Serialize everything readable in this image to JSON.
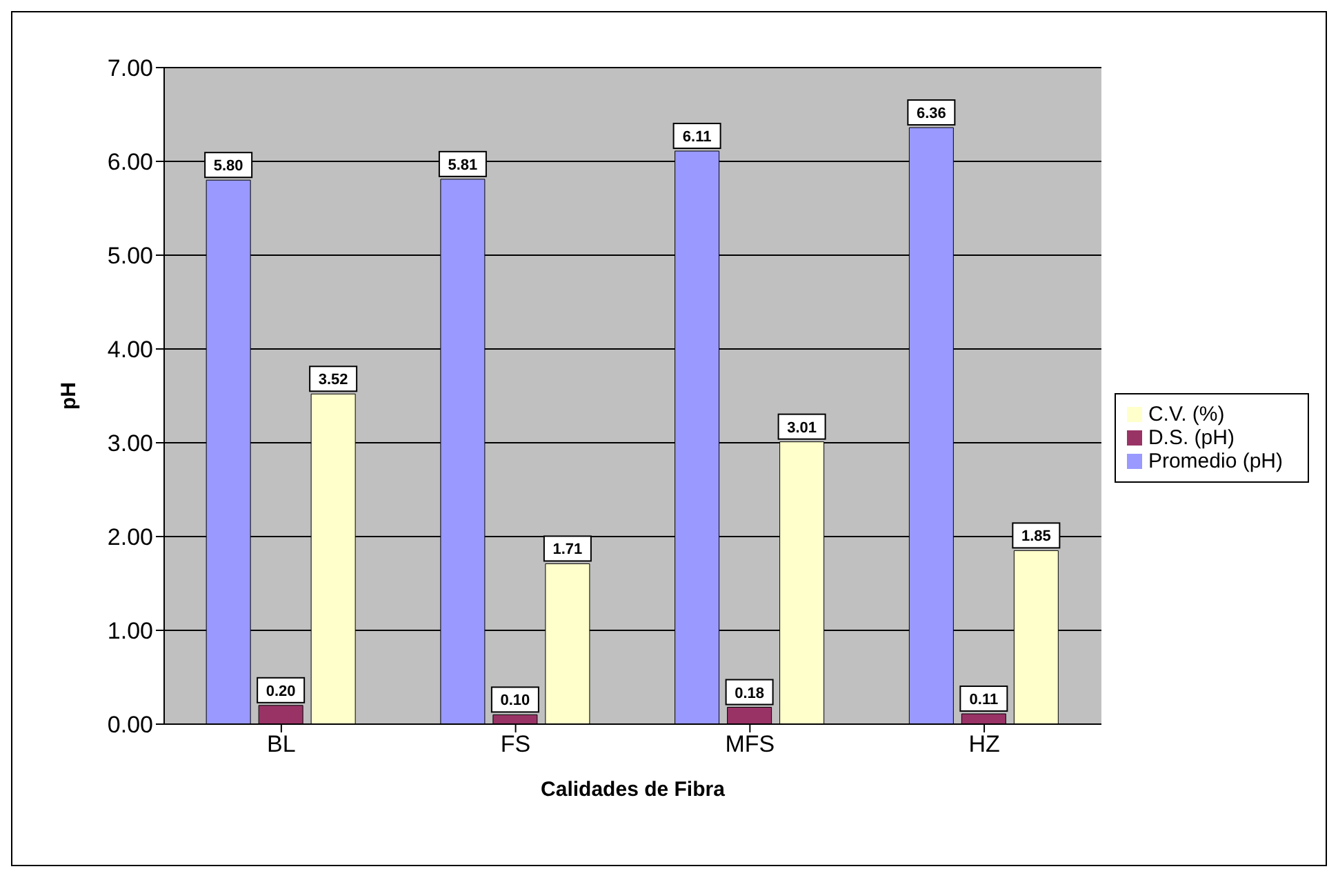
{
  "chart_data": {
    "type": "bar",
    "xlabel": "Calidades de Fibra",
    "ylabel": "pH",
    "categories": [
      "BL",
      "FS",
      "MFS",
      "HZ"
    ],
    "series": [
      {
        "name": "Promedio (pH)",
        "color": "#9999ff",
        "values": [
          5.8,
          5.81,
          6.11,
          6.36
        ],
        "value_labels": [
          "5.80",
          "5.81",
          "6.11",
          "6.36"
        ]
      },
      {
        "name": "D.S. (pH)",
        "color": "#993366",
        "values": [
          0.2,
          0.1,
          0.18,
          0.11
        ],
        "value_labels": [
          "0.20",
          "0.10",
          "0.18",
          "0.11"
        ]
      },
      {
        "name": "C.V. (%)",
        "color": "#ffffcc",
        "values": [
          3.52,
          1.71,
          3.01,
          1.85
        ],
        "value_labels": [
          "3.52",
          "1.71",
          "3.01",
          "1.85"
        ]
      }
    ],
    "ylim": [
      0,
      7
    ],
    "yticks": [
      {
        "value": 0,
        "label": "0.00"
      },
      {
        "value": 1,
        "label": "1.00"
      },
      {
        "value": 2,
        "label": "2.00"
      },
      {
        "value": 3,
        "label": "3.00"
      },
      {
        "value": 4,
        "label": "4.00"
      },
      {
        "value": 5,
        "label": "5.00"
      },
      {
        "value": 6,
        "label": "6.00"
      },
      {
        "value": 7,
        "label": "7.00"
      }
    ],
    "grid": "y",
    "legend": "right"
  }
}
